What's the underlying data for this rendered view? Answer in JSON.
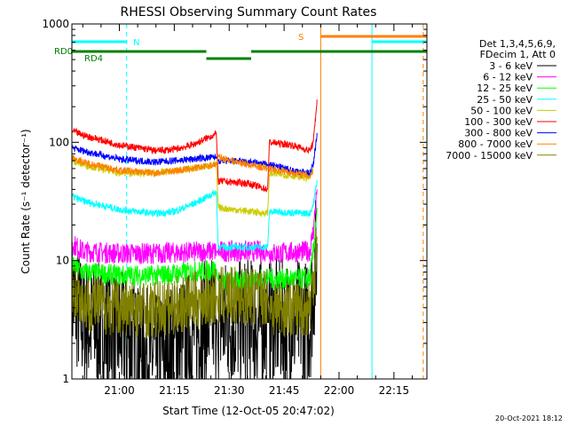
{
  "chart_data": {
    "type": "line",
    "title": "RHESSI Observing Summary Count Rates",
    "xlabel": "Start Time (12-Oct-05 20:47:02)",
    "ylabel": "Count Rate (s⁻¹ detector⁻¹)",
    "y_scale": "log",
    "ylim": [
      1,
      1000
    ],
    "xlim": [
      "20:47:02",
      "22:24:00"
    ],
    "y_ticks": [
      {
        "value": 1,
        "label": "1"
      },
      {
        "value": 10,
        "label": "10"
      },
      {
        "value": 100,
        "label": "100"
      },
      {
        "value": 1000,
        "label": "1000"
      }
    ],
    "x_ticks": [
      {
        "time": "21:00",
        "label": "21:00"
      },
      {
        "time": "21:15",
        "label": "21:15"
      },
      {
        "time": "21:30",
        "label": "21:30"
      },
      {
        "time": "21:45",
        "label": "21:45"
      },
      {
        "time": "22:00",
        "label": "22:00"
      },
      {
        "time": "22:15",
        "label": "22:15"
      }
    ],
    "legend": {
      "placement": "right",
      "header": [
        "Det 1,3,4,5,6,9,",
        "FDecim 1, Att 0"
      ]
    },
    "series": [
      {
        "name": "3 - 6 keV",
        "color": "#000000",
        "points": [
          [
            "20:47:02",
            5
          ],
          [
            "20:50:00",
            3
          ],
          [
            "21:00:00",
            2.4
          ],
          [
            "21:10:00",
            1.5
          ],
          [
            "21:20:00",
            2.5
          ],
          [
            "21:26:30",
            3.2
          ],
          [
            "21:27:00",
            3
          ],
          [
            "21:40:30",
            3
          ],
          [
            "21:41:00",
            3
          ],
          [
            "21:52:00",
            3
          ],
          [
            "21:53:00",
            6
          ],
          [
            "21:54:00",
            14
          ]
        ]
      },
      {
        "name": "6 - 12 keV",
        "color": "#ff00ff",
        "points": [
          [
            "20:47:02",
            14
          ],
          [
            "20:50:00",
            12
          ],
          [
            "21:00:00",
            11.5
          ],
          [
            "21:10:00",
            11.5
          ],
          [
            "21:20:00",
            11.8
          ],
          [
            "21:26:30",
            12
          ],
          [
            "21:27:00",
            12
          ],
          [
            "21:40:30",
            12
          ],
          [
            "21:41:00",
            11.5
          ],
          [
            "21:52:00",
            12
          ],
          [
            "21:53:00",
            18
          ],
          [
            "21:54:00",
            40
          ]
        ]
      },
      {
        "name": "12 - 25 keV",
        "color": "#00ff00",
        "points": [
          [
            "20:47:02",
            9
          ],
          [
            "20:50:00",
            8
          ],
          [
            "21:00:00",
            7.5
          ],
          [
            "21:10:00",
            7.5
          ],
          [
            "21:20:00",
            8
          ],
          [
            "21:26:30",
            8.5
          ],
          [
            "21:27:00",
            6.5
          ],
          [
            "21:40:30",
            7
          ],
          [
            "21:41:00",
            7
          ],
          [
            "21:52:00",
            7
          ],
          [
            "21:53:00",
            12
          ],
          [
            "21:54:00",
            28
          ]
        ]
      },
      {
        "name": "25 - 50 keV",
        "color": "#00ffff",
        "points": [
          [
            "20:47:02",
            35
          ],
          [
            "20:50:00",
            32
          ],
          [
            "21:00:00",
            27
          ],
          [
            "21:10:00",
            25
          ],
          [
            "21:15:00",
            26
          ],
          [
            "21:20:00",
            30
          ],
          [
            "21:26:30",
            38
          ],
          [
            "21:27:00",
            13
          ],
          [
            "21:40:30",
            13
          ],
          [
            "21:41:00",
            26
          ],
          [
            "21:52:00",
            25
          ],
          [
            "21:53:00",
            30
          ],
          [
            "21:54:00",
            48
          ]
        ]
      },
      {
        "name": "50 - 100 keV",
        "color": "#cccc00",
        "points": [
          [
            "20:47:02",
            70
          ],
          [
            "20:50:00",
            65
          ],
          [
            "21:00:00",
            55
          ],
          [
            "21:10:00",
            55
          ],
          [
            "21:20:00",
            60
          ],
          [
            "21:26:30",
            65
          ],
          [
            "21:27:00",
            28
          ],
          [
            "21:40:30",
            25
          ],
          [
            "21:41:00",
            55
          ],
          [
            "21:52:00",
            50
          ],
          [
            "21:53:00",
            60
          ]
        ]
      },
      {
        "name": "100 - 300 keV",
        "color": "#ff0000",
        "points": [
          [
            "20:47:02",
            125
          ],
          [
            "20:50:00",
            115
          ],
          [
            "21:00:00",
            95
          ],
          [
            "21:10:00",
            85
          ],
          [
            "21:15:00",
            87
          ],
          [
            "21:20:00",
            95
          ],
          [
            "21:26:30",
            118
          ],
          [
            "21:27:00",
            47
          ],
          [
            "21:35:00",
            45
          ],
          [
            "21:40:30",
            40
          ],
          [
            "21:41:00",
            100
          ],
          [
            "21:47:00",
            95
          ],
          [
            "21:52:00",
            85
          ],
          [
            "21:53:00",
            100
          ],
          [
            "21:54:00",
            230
          ]
        ]
      },
      {
        "name": "300 - 800 keV",
        "color": "#0000ff",
        "points": [
          [
            "20:47:02",
            90
          ],
          [
            "20:50:00",
            85
          ],
          [
            "21:00:00",
            72
          ],
          [
            "21:10:00",
            68
          ],
          [
            "21:20:00",
            72
          ],
          [
            "21:26:30",
            75
          ],
          [
            "21:27:00",
            70
          ],
          [
            "21:35:00",
            68
          ],
          [
            "21:40:30",
            65
          ],
          [
            "21:41:00",
            65
          ],
          [
            "21:47:00",
            58
          ],
          [
            "21:52:00",
            55
          ],
          [
            "21:53:00",
            65
          ],
          [
            "21:54:00",
            120
          ]
        ]
      },
      {
        "name": "800 - 7000 keV",
        "color": "#ff8000",
        "points": [
          [
            "20:47:02",
            75
          ],
          [
            "20:50:00",
            68
          ],
          [
            "21:00:00",
            58
          ],
          [
            "21:10:00",
            55
          ],
          [
            "21:20:00",
            60
          ],
          [
            "21:26:30",
            65
          ],
          [
            "21:27:00",
            75
          ],
          [
            "21:35:00",
            65
          ],
          [
            "21:40:30",
            60
          ],
          [
            "21:41:00",
            60
          ],
          [
            "21:52:00",
            52
          ],
          [
            "21:53:00",
            58
          ]
        ]
      },
      {
        "name": "7000 - 15000 keV",
        "color": "#808000",
        "points": [
          [
            "20:47:02",
            6
          ],
          [
            "20:50:00",
            4.5
          ],
          [
            "21:00:00",
            4
          ],
          [
            "21:10:00",
            3.8
          ],
          [
            "21:20:00",
            4.5
          ],
          [
            "21:26:30",
            5
          ],
          [
            "21:27:00",
            5
          ],
          [
            "21:40:30",
            5
          ],
          [
            "21:41:00",
            4
          ],
          [
            "21:52:00",
            4
          ],
          [
            "21:53:00",
            7
          ],
          [
            "21:54:00",
            16
          ]
        ]
      }
    ],
    "flag_bars": [
      {
        "label": "RD0",
        "color": "#008000",
        "segments": [
          [
            "20:47:02",
            "21:23:45"
          ],
          [
            "21:36:00",
            "22:24:00"
          ]
        ]
      },
      {
        "label": "RD4",
        "color": "#008000",
        "segments": [
          [
            "21:23:45",
            "21:36:00"
          ]
        ]
      },
      {
        "label": "N",
        "color": "#00ffff",
        "segments": [
          [
            "20:47:02",
            "21:02:00"
          ],
          [
            "22:09:00",
            "22:24:00"
          ]
        ]
      },
      {
        "label": "S",
        "color": "#ff8000",
        "segments": [
          [
            "21:55:00",
            "22:24:00"
          ]
        ]
      }
    ],
    "vertical_lines": [
      {
        "time": "20:47:02",
        "color": "#00ffff",
        "style": "solid"
      },
      {
        "time": "21:02:00",
        "color": "#00ffff",
        "style": "dashed"
      },
      {
        "time": "21:55:00",
        "color": "#ff8000",
        "style": "solid"
      },
      {
        "time": "22:09:00",
        "color": "#00ffff",
        "style": "solid"
      },
      {
        "time": "22:23:00",
        "color": "#ff8000",
        "style": "dashed"
      }
    ],
    "footer_date": "20-Oct-2021 18:12"
  }
}
